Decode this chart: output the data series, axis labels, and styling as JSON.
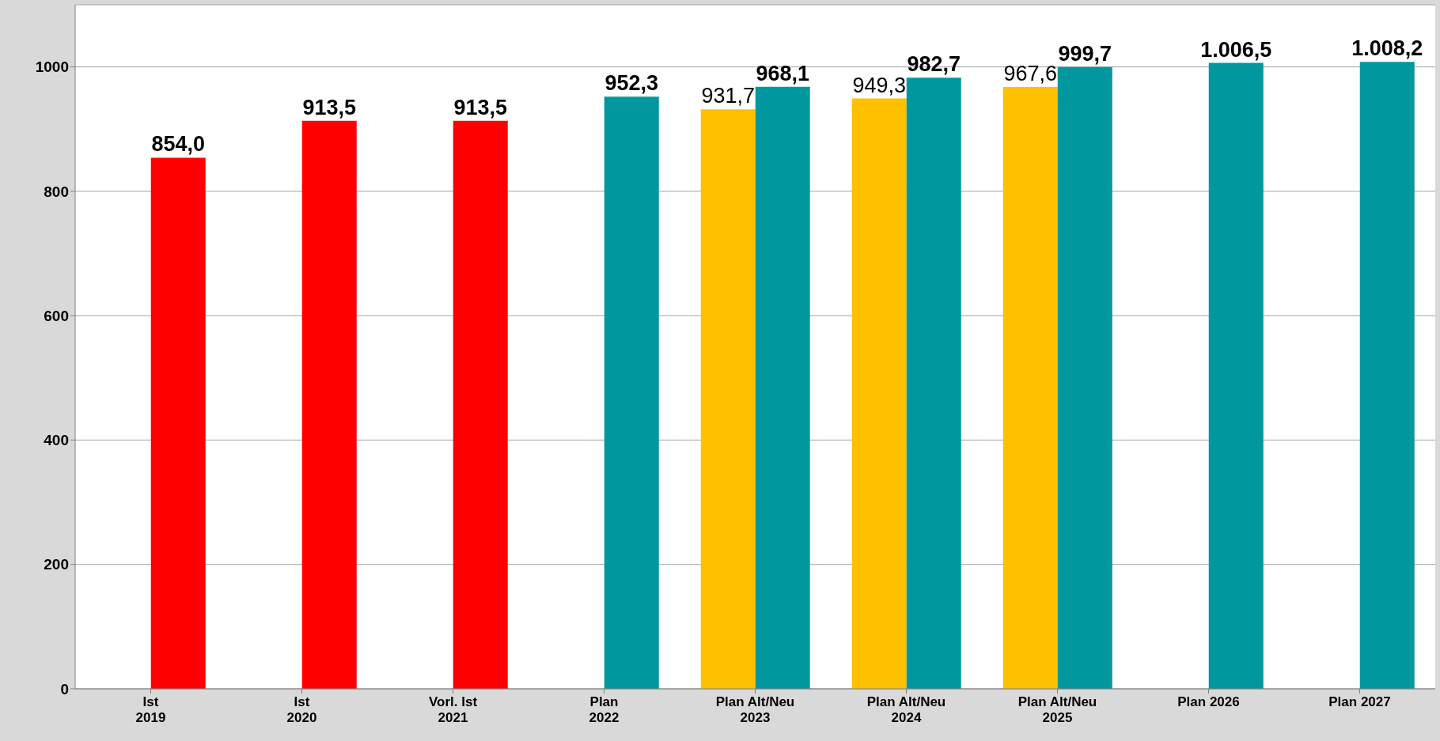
{
  "chart_data": {
    "type": "bar",
    "categories": [
      "Ist\n2019",
      "Ist\n2020",
      "Vorl. Ist\n2021",
      "Plan\n2022",
      "Plan Alt/Neu\n2023",
      "Plan Alt/Neu\n2024",
      "Plan Alt/Neu\n2025",
      "Plan 2026",
      "Plan 2027"
    ],
    "series": [
      {
        "color": "#ffc000",
        "values": [
          null,
          null,
          null,
          null,
          931.7,
          949.3,
          967.6,
          null,
          null
        ],
        "value_labels": [
          null,
          null,
          null,
          null,
          "931,7",
          "949,3",
          "967,6",
          null,
          null
        ]
      },
      {
        "color": "#00979f",
        "colors": [
          "#ff0000",
          "#ff0000",
          "#ff0000",
          "#00979f",
          "#00979f",
          "#00979f",
          "#00979f",
          "#00979f",
          "#00979f"
        ],
        "values": [
          854.0,
          913.5,
          913.5,
          952.3,
          968.1,
          982.7,
          999.7,
          1006.5,
          1008.2
        ],
        "value_labels": [
          "854,0",
          "913,5",
          "913,5",
          "952,3",
          "968,1",
          "982,7",
          "999,7",
          "1.006,5",
          "1.008,2"
        ]
      }
    ],
    "ylim": [
      0,
      1100
    ],
    "yticks": [
      0,
      200,
      400,
      600,
      800,
      1000
    ],
    "grid": "y",
    "legend": false
  }
}
